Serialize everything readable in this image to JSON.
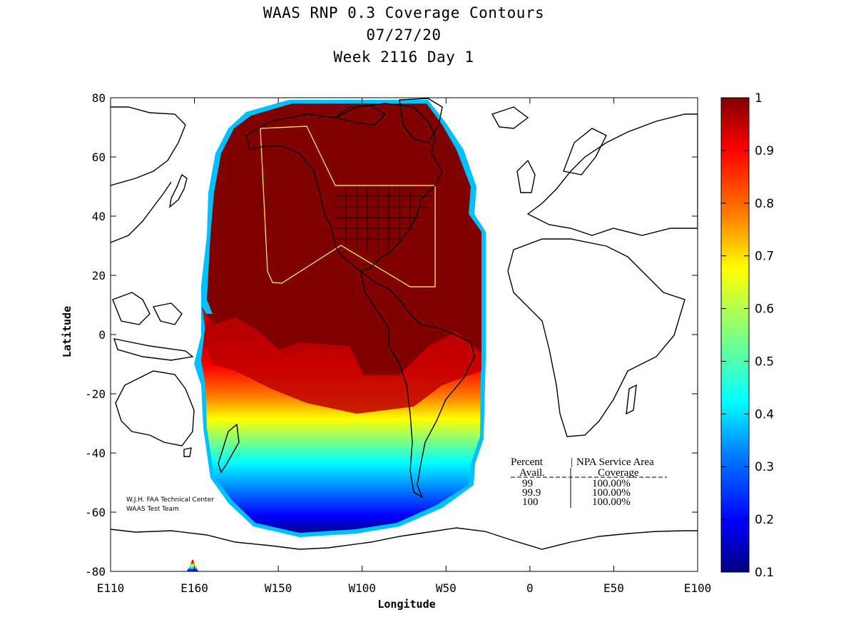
{
  "title": {
    "line1": "WAAS RNP 0.3 Coverage Contours",
    "line2": "07/27/20",
    "line3": "Week 2116 Day 1"
  },
  "axes": {
    "xlabel": "Longitude",
    "ylabel": "Latitude",
    "x_ticks": [
      {
        "lon": -250,
        "label": "E110"
      },
      {
        "lon": -200,
        "label": "E160"
      },
      {
        "lon": -150,
        "label": "W150"
      },
      {
        "lon": -100,
        "label": "W100"
      },
      {
        "lon": -50,
        "label": "W50"
      },
      {
        "lon": 0,
        "label": "0"
      },
      {
        "lon": 50,
        "label": "E50"
      },
      {
        "lon": 100,
        "label": "E100"
      }
    ],
    "y_ticks": [
      80,
      60,
      40,
      20,
      0,
      -20,
      -40,
      -60,
      -80
    ],
    "xlim": [
      -250,
      100
    ],
    "ylim": [
      -80,
      80
    ]
  },
  "colorbar": {
    "min": 0.1,
    "max": 1,
    "ticks": [
      "1",
      "0.9",
      "0.8",
      "0.7",
      "0.6",
      "0.5",
      "0.4",
      "0.3",
      "0.2",
      "0.1"
    ]
  },
  "legend_table": {
    "header_col1": "Percent",
    "header_col2": "NPA Service Area",
    "sub_col1": "Avail.",
    "sub_col2": "Coverage",
    "rows": [
      {
        "avail": "99",
        "coverage": "100.00%"
      },
      {
        "avail": "99.9",
        "coverage": "100.00%"
      },
      {
        "avail": "100",
        "coverage": "100.00%"
      }
    ]
  },
  "credit": {
    "line1": "W.J.H. FAA Technical Center",
    "line2": "WAAS Test Team"
  },
  "colors": {
    "max_coverage": "#800000",
    "service_area_outline": "#ffff66",
    "map_lines": "#000000"
  }
}
